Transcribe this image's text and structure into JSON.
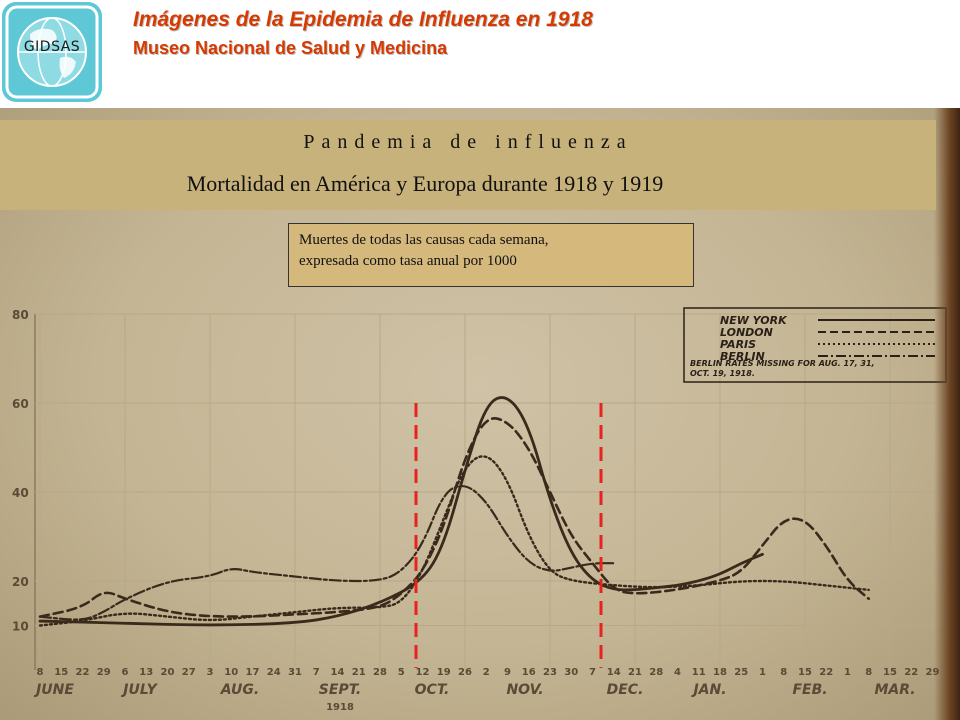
{
  "header": {
    "logo_text": "GIDSAS",
    "title": "Imágenes de la Epidemia de Influenza en 1918",
    "subtitle": "Museo Nacional de Salud y Medicina",
    "colors": {
      "title": "#d63a00",
      "logo": "#5fc8d6"
    }
  },
  "banner": {
    "line1": "Pandemia de influenza",
    "line2": "Mortalidad en América y Europa durante 1918 y 1919"
  },
  "note": {
    "line1": "Muertes de todas las causas cada semana,",
    "line2": "expresada como tasa anual por 1000"
  },
  "chart_data": {
    "type": "line",
    "ylim": [
      0,
      80
    ],
    "y_ticks": [
      "80",
      "60",
      "40",
      "20",
      "10"
    ],
    "x_ticks": [
      "8",
      "15",
      "22",
      "29",
      "6",
      "13",
      "20",
      "27",
      "3",
      "10",
      "17",
      "24",
      "31",
      "7",
      "14",
      "21",
      "28",
      "5",
      "12",
      "19",
      "26",
      "2",
      "9",
      "16",
      "23",
      "30",
      "7",
      "14",
      "21",
      "28",
      "4",
      "11",
      "18",
      "25",
      "1",
      "8",
      "15",
      "22",
      "1",
      "8",
      "15",
      "22",
      "29"
    ],
    "months": [
      "JUNE",
      "JULY",
      "AUG.",
      "SEPT.",
      "OCT.",
      "NOV.",
      "DEC.",
      "JAN.",
      "FEB.",
      "MAR."
    ],
    "year_label": "1918",
    "legend": {
      "entries": [
        "NEW YORK",
        "LONDON",
        "PARIS",
        "BERLIN"
      ],
      "note": [
        "BERLIN RATES MISSING FOR AUG. 17, 31,",
        "OCT. 19, 1918."
      ]
    },
    "series": [
      {
        "name": "NEW YORK",
        "style": "solid",
        "points": [
          [
            0,
            11
          ],
          [
            4,
            10.5
          ],
          [
            8,
            10
          ],
          [
            12,
            10.5
          ],
          [
            14,
            12
          ],
          [
            16,
            15
          ],
          [
            18,
            20
          ],
          [
            19,
            28
          ],
          [
            20,
            45
          ],
          [
            21,
            60
          ],
          [
            22,
            62
          ],
          [
            23,
            55
          ],
          [
            24,
            38
          ],
          [
            25,
            26
          ],
          [
            26,
            20
          ],
          [
            27,
            18
          ],
          [
            28,
            18
          ],
          [
            29,
            18.5
          ],
          [
            30,
            19
          ],
          [
            31,
            20
          ],
          [
            32,
            21.5
          ],
          [
            33,
            24
          ],
          [
            34,
            26
          ]
        ]
      },
      {
        "name": "LONDON",
        "style": "dashed",
        "points": [
          [
            0,
            12
          ],
          [
            2,
            14
          ],
          [
            3,
            18
          ],
          [
            4,
            16
          ],
          [
            6,
            13
          ],
          [
            8,
            12
          ],
          [
            10,
            12
          ],
          [
            12,
            12.5
          ],
          [
            14,
            13
          ],
          [
            16,
            14
          ],
          [
            17,
            17
          ],
          [
            18,
            22
          ],
          [
            19,
            32
          ],
          [
            20,
            48
          ],
          [
            21,
            57
          ],
          [
            22,
            56
          ],
          [
            23,
            50
          ],
          [
            24,
            40
          ],
          [
            25,
            30
          ],
          [
            26,
            24
          ],
          [
            27,
            18
          ],
          [
            28,
            17
          ],
          [
            30,
            18
          ],
          [
            32,
            20
          ],
          [
            33,
            22
          ],
          [
            34,
            28
          ],
          [
            35,
            34
          ],
          [
            36,
            34
          ],
          [
            37,
            28
          ],
          [
            38,
            20
          ],
          [
            39,
            16
          ]
        ]
      },
      {
        "name": "PARIS",
        "style": "dotted",
        "points": [
          [
            0,
            10
          ],
          [
            2,
            11
          ],
          [
            4,
            13
          ],
          [
            6,
            12
          ],
          [
            8,
            11
          ],
          [
            10,
            12
          ],
          [
            12,
            13
          ],
          [
            14,
            14
          ],
          [
            16,
            14
          ],
          [
            17,
            15
          ],
          [
            18,
            22
          ],
          [
            19,
            34
          ],
          [
            20,
            46
          ],
          [
            21,
            49
          ],
          [
            22,
            43
          ],
          [
            23,
            30
          ],
          [
            24,
            22
          ],
          [
            25,
            20
          ],
          [
            27,
            19
          ],
          [
            29,
            18.5
          ],
          [
            31,
            19
          ],
          [
            33,
            20
          ],
          [
            35,
            20
          ],
          [
            37,
            19
          ],
          [
            39,
            18
          ]
        ]
      },
      {
        "name": "BERLIN",
        "style": "dash-dot",
        "points": [
          [
            0,
            12
          ],
          [
            2,
            11
          ],
          [
            3,
            13
          ],
          [
            4,
            16
          ],
          [
            6,
            20
          ],
          [
            8,
            21
          ],
          [
            9,
            23
          ],
          [
            10,
            22
          ],
          [
            12,
            21
          ],
          [
            14,
            20
          ],
          [
            16,
            20
          ],
          [
            17,
            22
          ],
          [
            18,
            28
          ],
          [
            19,
            40
          ],
          [
            20,
            42
          ],
          [
            21,
            38
          ],
          [
            22,
            30
          ],
          [
            23,
            24
          ],
          [
            24,
            22
          ],
          [
            25,
            23
          ],
          [
            26,
            24
          ],
          [
            27,
            24
          ]
        ]
      }
    ],
    "markers": [
      {
        "color": "#e8231f",
        "between": [
          "3",
          "10"
        ]
      },
      {
        "color": "#e8231f",
        "between": [
          "30",
          "7"
        ]
      }
    ]
  }
}
